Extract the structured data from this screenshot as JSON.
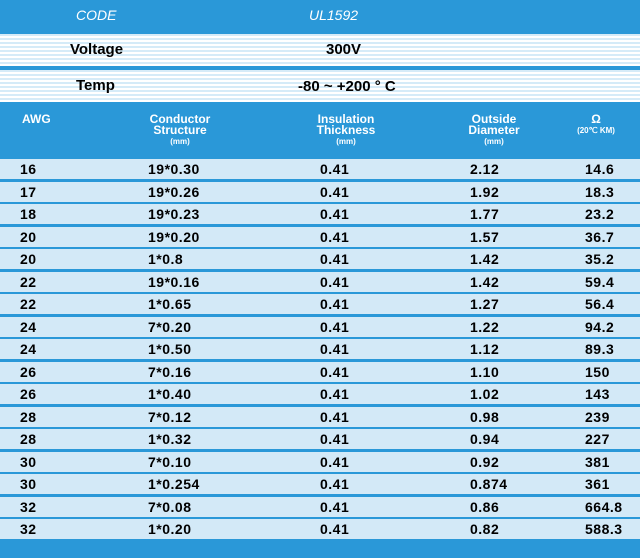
{
  "code": {
    "label": "CODE",
    "value": "UL1592"
  },
  "specs": [
    {
      "label": "Voltage",
      "value": "300V"
    },
    {
      "label": "Temp",
      "value": "-80 ~ +200 ° C"
    }
  ],
  "table": {
    "header": [
      [
        "AWG"
      ],
      [
        "Conductor",
        "Structure",
        "(mm)"
      ],
      [
        "Insulation",
        "Thickness",
        "(mm)"
      ],
      [
        "Outside",
        "Diameter",
        "(mm)"
      ],
      [
        "Ω",
        "(20℃ KM)"
      ]
    ],
    "rows": [
      [
        "16",
        "19*0.30",
        "0.41",
        "2.12",
        "14.6"
      ],
      [
        "17",
        "19*0.26",
        "0.41",
        "1.92",
        "18.3"
      ],
      [
        "18",
        "19*0.23",
        "0.41",
        "1.77",
        "23.2"
      ],
      [
        "20",
        "19*0.20",
        "0.41",
        "1.57",
        "36.7"
      ],
      [
        "20",
        "1*0.8",
        "0.41",
        "1.42",
        "35.2"
      ],
      [
        "22",
        "19*0.16",
        "0.41",
        "1.42",
        "59.4"
      ],
      [
        "22",
        "1*0.65",
        "0.41",
        "1.27",
        "56.4"
      ],
      [
        "24",
        "7*0.20",
        "0.41",
        "1.22",
        "94.2"
      ],
      [
        "24",
        "1*0.50",
        "0.41",
        "1.12",
        "89.3"
      ],
      [
        "26",
        "7*0.16",
        "0.41",
        "1.10",
        "150"
      ],
      [
        "26",
        "1*0.40",
        "0.41",
        "1.02",
        "143"
      ],
      [
        "28",
        "7*0.12",
        "0.41",
        "0.98",
        "239"
      ],
      [
        "28",
        "1*0.32",
        "0.41",
        "0.94",
        "227"
      ],
      [
        "30",
        "7*0.10",
        "0.41",
        "0.92",
        "381"
      ],
      [
        "30",
        "1*0.254",
        "0.41",
        "0.874",
        "361"
      ],
      [
        "32",
        "7*0.08",
        "0.41",
        "0.86",
        "664.8"
      ],
      [
        "32",
        "1*0.20",
        "0.41",
        "0.82",
        "588.3"
      ]
    ]
  }
}
